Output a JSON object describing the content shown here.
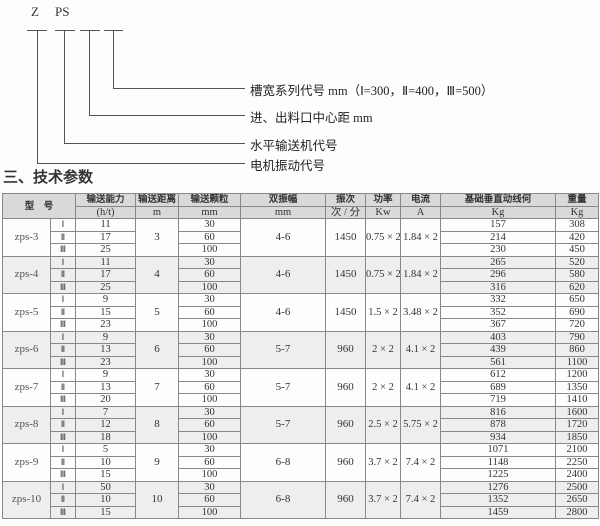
{
  "diagram": {
    "letters": [
      "Z",
      "PS"
    ],
    "labels": [
      "槽宽系列代号 mm（Ⅰ=300，Ⅱ=400，Ⅲ=500）",
      "进、出料口中心距 mm",
      "水平输送机代号",
      "电机振动代号"
    ]
  },
  "section_title": "三、技术参数",
  "table": {
    "header_model": "型　号",
    "headers": [
      "输送能力",
      "输送距离",
      "输送颗粒",
      "双振幅",
      "振次",
      "功率",
      "电流",
      "基础垂直动线何",
      "重量"
    ],
    "units": [
      "(h/t)",
      "m",
      "mm",
      "mm",
      "次 / 分",
      "Kw",
      "A",
      "Kg",
      "Kg"
    ],
    "groups": [
      {
        "model": "zps-3",
        "distance": "3",
        "amplitude": "4-6",
        "frequency": "1450",
        "power": "0.75 × 2",
        "current": "1.84 × 2",
        "rows": [
          {
            "grade": "Ⅰ",
            "capacity": "11",
            "particle": "30",
            "load": "157",
            "weight": "308"
          },
          {
            "grade": "Ⅱ",
            "capacity": "17",
            "particle": "60",
            "load": "214",
            "weight": "420"
          },
          {
            "grade": "Ⅲ",
            "capacity": "25",
            "particle": "100",
            "load": "230",
            "weight": "450"
          }
        ]
      },
      {
        "model": "zps-4",
        "distance": "4",
        "amplitude": "4-6",
        "frequency": "1450",
        "power": "0.75 × 2",
        "current": "1.84 × 2",
        "rows": [
          {
            "grade": "Ⅰ",
            "capacity": "11",
            "particle": "30",
            "load": "265",
            "weight": "520"
          },
          {
            "grade": "Ⅱ",
            "capacity": "17",
            "particle": "60",
            "load": "296",
            "weight": "580"
          },
          {
            "grade": "Ⅲ",
            "capacity": "25",
            "particle": "100",
            "load": "316",
            "weight": "620"
          }
        ]
      },
      {
        "model": "zps-5",
        "distance": "5",
        "amplitude": "4-6",
        "frequency": "1450",
        "power": "1.5 × 2",
        "current": "3.48 × 2",
        "rows": [
          {
            "grade": "Ⅰ",
            "capacity": "9",
            "particle": "30",
            "load": "332",
            "weight": "650"
          },
          {
            "grade": "Ⅱ",
            "capacity": "15",
            "particle": "60",
            "load": "352",
            "weight": "690"
          },
          {
            "grade": "Ⅲ",
            "capacity": "23",
            "particle": "100",
            "load": "367",
            "weight": "720"
          }
        ]
      },
      {
        "model": "zps-6",
        "distance": "6",
        "amplitude": "5-7",
        "frequency": "960",
        "power": "2 × 2",
        "current": "4.1 × 2",
        "rows": [
          {
            "grade": "Ⅰ",
            "capacity": "9",
            "particle": "30",
            "load": "403",
            "weight": "790"
          },
          {
            "grade": "Ⅱ",
            "capacity": "13",
            "particle": "60",
            "load": "439",
            "weight": "860"
          },
          {
            "grade": "Ⅲ",
            "capacity": "23",
            "particle": "100",
            "load": "561",
            "weight": "1100"
          }
        ]
      },
      {
        "model": "zps-7",
        "distance": "7",
        "amplitude": "5-7",
        "frequency": "960",
        "power": "2 × 2",
        "current": "4.1 × 2",
        "rows": [
          {
            "grade": "Ⅰ",
            "capacity": "9",
            "particle": "30",
            "load": "612",
            "weight": "1200"
          },
          {
            "grade": "Ⅱ",
            "capacity": "13",
            "particle": "60",
            "load": "689",
            "weight": "1350"
          },
          {
            "grade": "Ⅲ",
            "capacity": "20",
            "particle": "100",
            "load": "719",
            "weight": "1410"
          }
        ]
      },
      {
        "model": "zps-8",
        "distance": "8",
        "amplitude": "5-7",
        "frequency": "960",
        "power": "2.5 × 2",
        "current": "5.75 × 2",
        "rows": [
          {
            "grade": "Ⅰ",
            "capacity": "7",
            "particle": "30",
            "load": "816",
            "weight": "1600"
          },
          {
            "grade": "Ⅱ",
            "capacity": "12",
            "particle": "60",
            "load": "878",
            "weight": "1720"
          },
          {
            "grade": "Ⅲ",
            "capacity": "18",
            "particle": "100",
            "load": "934",
            "weight": "1850"
          }
        ]
      },
      {
        "model": "zps-9",
        "distance": "9",
        "amplitude": "6-8",
        "frequency": "960",
        "power": "3.7 × 2",
        "current": "7.4 × 2",
        "rows": [
          {
            "grade": "Ⅰ",
            "capacity": "5",
            "particle": "30",
            "load": "1071",
            "weight": "2100"
          },
          {
            "grade": "Ⅱ",
            "capacity": "10",
            "particle": "60",
            "load": "1148",
            "weight": "2250"
          },
          {
            "grade": "Ⅲ",
            "capacity": "15",
            "particle": "100",
            "load": "1225",
            "weight": "2400"
          }
        ]
      },
      {
        "model": "zps-10",
        "distance": "10",
        "amplitude": "6-8",
        "frequency": "960",
        "power": "3.7 × 2",
        "current": "7.4 × 2",
        "rows": [
          {
            "grade": "Ⅰ",
            "capacity": "50",
            "particle": "30",
            "load": "1276",
            "weight": "2500"
          },
          {
            "grade": "Ⅱ",
            "capacity": "10",
            "particle": "60",
            "load": "1352",
            "weight": "2650"
          },
          {
            "grade": "Ⅲ",
            "capacity": "15",
            "particle": "100",
            "load": "1459",
            "weight": "2800"
          }
        ]
      }
    ]
  }
}
